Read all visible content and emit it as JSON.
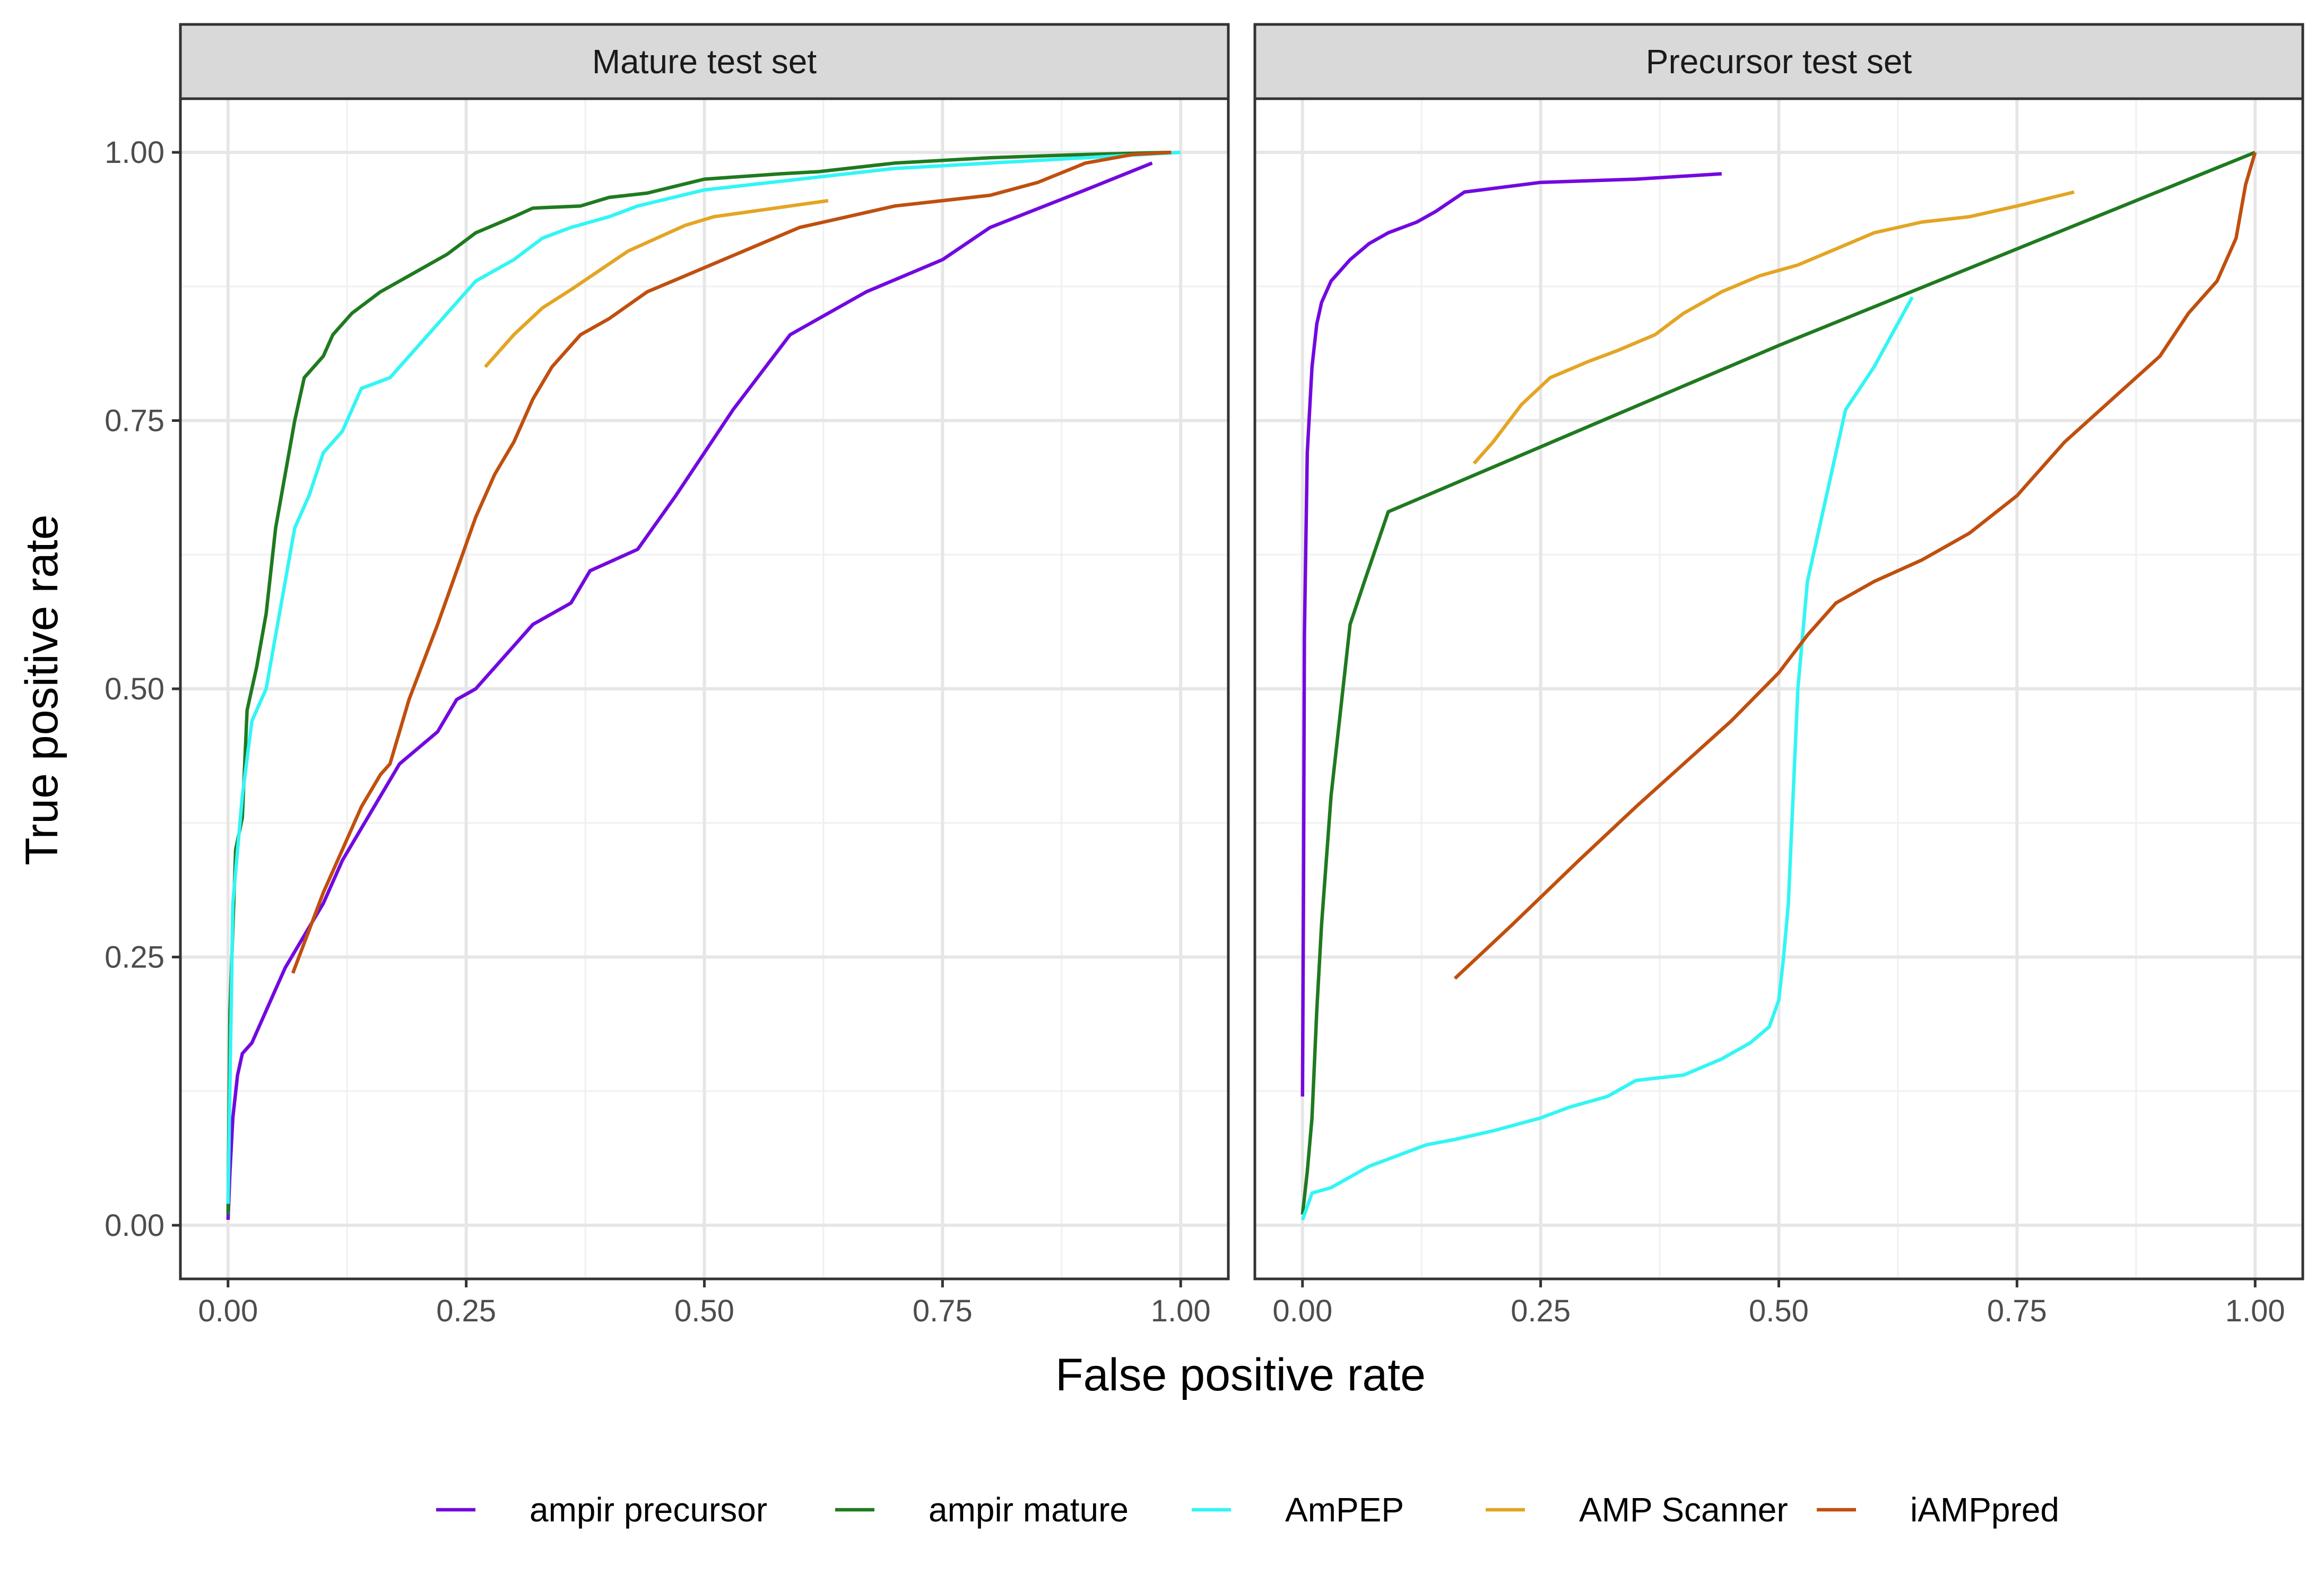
{
  "chart_data": {
    "type": "line",
    "xlabel": "False positive rate",
    "ylabel": "True positive rate",
    "xlim": [
      0,
      1
    ],
    "ylim": [
      0,
      1
    ],
    "x_ticks": [
      "0.00",
      "0.25",
      "0.50",
      "0.75",
      "1.00"
    ],
    "y_ticks": [
      "0.00",
      "0.25",
      "0.50",
      "0.75",
      "1.00"
    ],
    "grid": true,
    "legend_position": "bottom",
    "legend": [
      {
        "name": "ampir precursor",
        "color": "#7209e0"
      },
      {
        "name": "ampir mature",
        "color": "#1f7a1f"
      },
      {
        "name": "AmPEP",
        "color": "#33f5f5"
      },
      {
        "name": "AMP Scanner",
        "color": "#e3a524"
      },
      {
        "name": "iAMPpred",
        "color": "#c04f0e"
      }
    ],
    "panels": [
      {
        "title": "Mature test set",
        "series": [
          {
            "name": "ampir precursor",
            "color": "#7209e0",
            "points": [
              [
                0,
                0.005
              ],
              [
                0.002,
                0.05
              ],
              [
                0.005,
                0.1
              ],
              [
                0.01,
                0.14
              ],
              [
                0.015,
                0.16
              ],
              [
                0.025,
                0.17
              ],
              [
                0.035,
                0.19
              ],
              [
                0.05,
                0.22
              ],
              [
                0.06,
                0.24
              ],
              [
                0.08,
                0.27
              ],
              [
                0.1,
                0.3
              ],
              [
                0.12,
                0.34
              ],
              [
                0.14,
                0.37
              ],
              [
                0.16,
                0.4
              ],
              [
                0.18,
                0.43
              ],
              [
                0.2,
                0.445
              ],
              [
                0.22,
                0.46
              ],
              [
                0.24,
                0.49
              ],
              [
                0.26,
                0.5
              ],
              [
                0.28,
                0.52
              ],
              [
                0.32,
                0.56
              ],
              [
                0.36,
                0.58
              ],
              [
                0.38,
                0.61
              ],
              [
                0.43,
                0.63
              ],
              [
                0.47,
                0.68
              ],
              [
                0.53,
                0.76
              ],
              [
                0.59,
                0.83
              ],
              [
                0.67,
                0.87
              ],
              [
                0.75,
                0.9
              ],
              [
                0.8,
                0.93
              ],
              [
                0.9,
                0.965
              ],
              [
                0.97,
                0.99
              ]
            ]
          },
          {
            "name": "ampir mature",
            "color": "#1f7a1f",
            "points": [
              [
                0,
                0.01
              ],
              [
                0.002,
                0.2
              ],
              [
                0.008,
                0.35
              ],
              [
                0.015,
                0.38
              ],
              [
                0.02,
                0.48
              ],
              [
                0.03,
                0.52
              ],
              [
                0.04,
                0.57
              ],
              [
                0.05,
                0.65
              ],
              [
                0.06,
                0.7
              ],
              [
                0.07,
                0.75
              ],
              [
                0.08,
                0.79
              ],
              [
                0.1,
                0.81
              ],
              [
                0.11,
                0.83
              ],
              [
                0.13,
                0.85
              ],
              [
                0.16,
                0.87
              ],
              [
                0.2,
                0.89
              ],
              [
                0.23,
                0.905
              ],
              [
                0.26,
                0.925
              ],
              [
                0.3,
                0.94
              ],
              [
                0.32,
                0.948
              ],
              [
                0.37,
                0.95
              ],
              [
                0.4,
                0.958
              ],
              [
                0.44,
                0.962
              ],
              [
                0.5,
                0.975
              ],
              [
                0.58,
                0.98
              ],
              [
                0.62,
                0.982
              ],
              [
                0.7,
                0.99
              ],
              [
                0.8,
                0.995
              ],
              [
                0.9,
                0.998
              ],
              [
                0.99,
                1.0
              ]
            ]
          },
          {
            "name": "AmPEP",
            "color": "#33f5f5",
            "points": [
              [
                0,
                0.02
              ],
              [
                0.005,
                0.3
              ],
              [
                0.015,
                0.4
              ],
              [
                0.025,
                0.47
              ],
              [
                0.04,
                0.5
              ],
              [
                0.05,
                0.55
              ],
              [
                0.06,
                0.6
              ],
              [
                0.07,
                0.65
              ],
              [
                0.085,
                0.68
              ],
              [
                0.1,
                0.72
              ],
              [
                0.12,
                0.74
              ],
              [
                0.14,
                0.78
              ],
              [
                0.17,
                0.79
              ],
              [
                0.2,
                0.82
              ],
              [
                0.22,
                0.84
              ],
              [
                0.24,
                0.86
              ],
              [
                0.26,
                0.88
              ],
              [
                0.3,
                0.9
              ],
              [
                0.33,
                0.92
              ],
              [
                0.36,
                0.93
              ],
              [
                0.4,
                0.94
              ],
              [
                0.43,
                0.95
              ],
              [
                0.5,
                0.965
              ],
              [
                0.6,
                0.975
              ],
              [
                0.7,
                0.985
              ],
              [
                0.8,
                0.99
              ],
              [
                0.9,
                0.995
              ],
              [
                1.0,
                1.0
              ]
            ]
          },
          {
            "name": "AMP Scanner",
            "color": "#e3a524",
            "points": [
              [
                0.27,
                0.8
              ],
              [
                0.3,
                0.83
              ],
              [
                0.33,
                0.855
              ],
              [
                0.36,
                0.872
              ],
              [
                0.39,
                0.89
              ],
              [
                0.42,
                0.908
              ],
              [
                0.45,
                0.92
              ],
              [
                0.48,
                0.932
              ],
              [
                0.51,
                0.94
              ],
              [
                0.55,
                0.945
              ],
              [
                0.59,
                0.95
              ],
              [
                0.63,
                0.955
              ]
            ]
          },
          {
            "name": "iAMPpred",
            "color": "#c04f0e",
            "points": [
              [
                0.068,
                0.235
              ],
              [
                0.1,
                0.31
              ],
              [
                0.14,
                0.39
              ],
              [
                0.16,
                0.42
              ],
              [
                0.17,
                0.43
              ],
              [
                0.19,
                0.49
              ],
              [
                0.22,
                0.56
              ],
              [
                0.24,
                0.61
              ],
              [
                0.26,
                0.66
              ],
              [
                0.28,
                0.7
              ],
              [
                0.3,
                0.73
              ],
              [
                0.32,
                0.77
              ],
              [
                0.34,
                0.8
              ],
              [
                0.37,
                0.83
              ],
              [
                0.4,
                0.845
              ],
              [
                0.44,
                0.87
              ],
              [
                0.48,
                0.885
              ],
              [
                0.52,
                0.9
              ],
              [
                0.56,
                0.915
              ],
              [
                0.6,
                0.93
              ],
              [
                0.65,
                0.94
              ],
              [
                0.7,
                0.95
              ],
              [
                0.75,
                0.955
              ],
              [
                0.8,
                0.96
              ],
              [
                0.85,
                0.972
              ],
              [
                0.9,
                0.99
              ],
              [
                0.95,
                0.998
              ],
              [
                0.99,
                1.0
              ]
            ]
          }
        ]
      },
      {
        "title": "Precursor test set",
        "series": [
          {
            "name": "ampir precursor",
            "color": "#7209e0",
            "points": [
              [
                0,
                0.12
              ],
              [
                0.001,
                0.3
              ],
              [
                0.002,
                0.55
              ],
              [
                0.005,
                0.72
              ],
              [
                0.01,
                0.8
              ],
              [
                0.015,
                0.84
              ],
              [
                0.02,
                0.86
              ],
              [
                0.03,
                0.88
              ],
              [
                0.05,
                0.9
              ],
              [
                0.07,
                0.915
              ],
              [
                0.09,
                0.925
              ],
              [
                0.12,
                0.935
              ],
              [
                0.14,
                0.945
              ],
              [
                0.17,
                0.963
              ],
              [
                0.25,
                0.972
              ],
              [
                0.35,
                0.975
              ],
              [
                0.44,
                0.98
              ]
            ]
          },
          {
            "name": "ampir mature",
            "color": "#1f7a1f",
            "points": [
              [
                0,
                0.01
              ],
              [
                0.005,
                0.05
              ],
              [
                0.01,
                0.1
              ],
              [
                0.015,
                0.2
              ],
              [
                0.02,
                0.28
              ],
              [
                0.03,
                0.4
              ],
              [
                0.04,
                0.48
              ],
              [
                0.05,
                0.56
              ],
              [
                0.065,
                0.6
              ],
              [
                0.09,
                0.665
              ],
              [
                0.5,
                0.82
              ],
              [
                1.0,
                1.0
              ]
            ]
          },
          {
            "name": "AmPEP",
            "color": "#33f5f5",
            "points": [
              [
                0,
                0.005
              ],
              [
                0.01,
                0.03
              ],
              [
                0.03,
                0.035
              ],
              [
                0.05,
                0.045
              ],
              [
                0.07,
                0.055
              ],
              [
                0.1,
                0.065
              ],
              [
                0.13,
                0.075
              ],
              [
                0.16,
                0.08
              ],
              [
                0.2,
                0.088
              ],
              [
                0.25,
                0.1
              ],
              [
                0.28,
                0.11
              ],
              [
                0.32,
                0.12
              ],
              [
                0.35,
                0.135
              ],
              [
                0.4,
                0.14
              ],
              [
                0.44,
                0.155
              ],
              [
                0.47,
                0.17
              ],
              [
                0.49,
                0.185
              ],
              [
                0.5,
                0.21
              ],
              [
                0.505,
                0.25
              ],
              [
                0.51,
                0.3
              ],
              [
                0.515,
                0.4
              ],
              [
                0.52,
                0.5
              ],
              [
                0.53,
                0.6
              ],
              [
                0.55,
                0.68
              ],
              [
                0.57,
                0.76
              ],
              [
                0.6,
                0.8
              ],
              [
                0.64,
                0.865
              ]
            ]
          },
          {
            "name": "AMP Scanner",
            "color": "#e3a524",
            "points": [
              [
                0.18,
                0.71
              ],
              [
                0.2,
                0.73
              ],
              [
                0.23,
                0.765
              ],
              [
                0.26,
                0.79
              ],
              [
                0.3,
                0.805
              ],
              [
                0.33,
                0.815
              ],
              [
                0.37,
                0.83
              ],
              [
                0.4,
                0.85
              ],
              [
                0.44,
                0.87
              ],
              [
                0.48,
                0.885
              ],
              [
                0.52,
                0.895
              ],
              [
                0.56,
                0.91
              ],
              [
                0.6,
                0.925
              ],
              [
                0.65,
                0.935
              ],
              [
                0.7,
                0.94
              ],
              [
                0.75,
                0.95
              ],
              [
                0.81,
                0.963
              ]
            ]
          },
          {
            "name": "iAMPpred",
            "color": "#c04f0e",
            "points": [
              [
                0.16,
                0.23
              ],
              [
                0.22,
                0.28
              ],
              [
                0.29,
                0.34
              ],
              [
                0.35,
                0.39
              ],
              [
                0.4,
                0.43
              ],
              [
                0.45,
                0.47
              ],
              [
                0.5,
                0.515
              ],
              [
                0.53,
                0.55
              ],
              [
                0.56,
                0.58
              ],
              [
                0.6,
                0.6
              ],
              [
                0.65,
                0.62
              ],
              [
                0.7,
                0.645
              ],
              [
                0.75,
                0.68
              ],
              [
                0.8,
                0.73
              ],
              [
                0.85,
                0.77
              ],
              [
                0.9,
                0.81
              ],
              [
                0.93,
                0.85
              ],
              [
                0.96,
                0.88
              ],
              [
                0.98,
                0.92
              ],
              [
                0.99,
                0.97
              ],
              [
                1.0,
                1.0
              ]
            ]
          }
        ]
      }
    ]
  }
}
